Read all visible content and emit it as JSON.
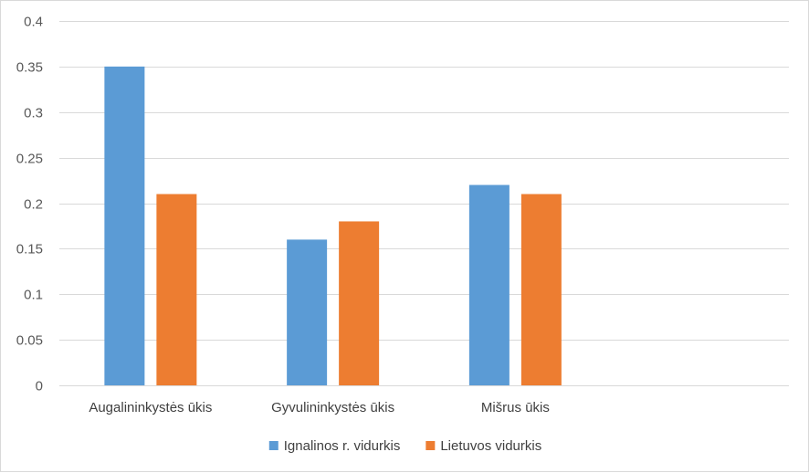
{
  "chart_data": {
    "type": "bar",
    "categories": [
      "Augalininkystės ūkis",
      "Gyvulininkystės ūkis",
      "Mišrus ūkis",
      ""
    ],
    "series": [
      {
        "name": "Ignalinos r. vidurkis",
        "values": [
          0.35,
          0.16,
          0.22,
          null
        ],
        "color": "#5B9BD5"
      },
      {
        "name": "Lietuvos vidurkis",
        "values": [
          0.21,
          0.18,
          0.21,
          null
        ],
        "color": "#ED7D31"
      }
    ],
    "ylim": [
      0,
      0.4
    ],
    "yticks": [
      "0",
      "0.05",
      "0.1",
      "0.15",
      "0.2",
      "0.25",
      "0.3",
      "0.35",
      "0.4"
    ],
    "grid": true,
    "legend": "bottom-center",
    "gridColor": "#d9d9d9"
  }
}
